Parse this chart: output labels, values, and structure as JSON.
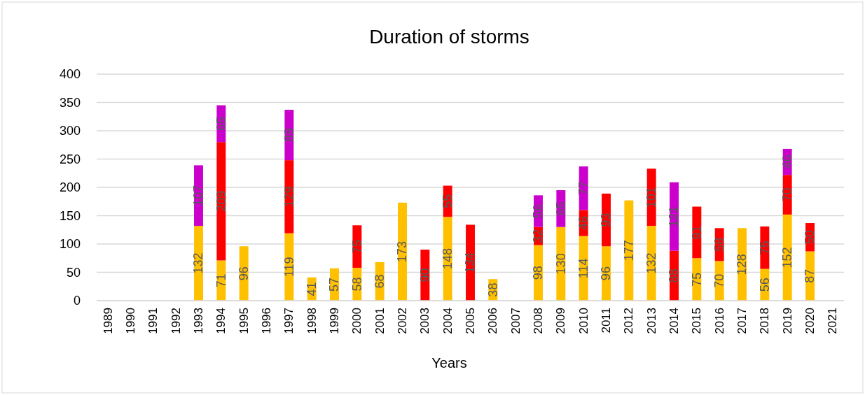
{
  "chart_data": {
    "type": "bar",
    "stacked": true,
    "title": "Duration of storms",
    "xlabel": "Years",
    "categories": [
      "1989",
      "1990",
      "1991",
      "1992",
      "1993",
      "1994",
      "1995",
      "1996",
      "1997",
      "1998",
      "1999",
      "2000",
      "2001",
      "2002",
      "2003",
      "2004",
      "2005",
      "2006",
      "2007",
      "2008",
      "2009",
      "2010",
      "2011",
      "2012",
      "2013",
      "2014",
      "2015",
      "2016",
      "2017",
      "2018",
      "2019",
      "2020",
      "2021"
    ],
    "series": [
      {
        "color": "#ffc000",
        "values": [
          null,
          null,
          null,
          null,
          132,
          71,
          96,
          null,
          119,
          41,
          57,
          58,
          68,
          173,
          null,
          148,
          null,
          38,
          null,
          98,
          130,
          114,
          96,
          177,
          132,
          null,
          75,
          70,
          128,
          56,
          152,
          87,
          null
        ]
      },
      {
        "color": "#ff0000",
        "values": [
          null,
          null,
          null,
          null,
          null,
          209,
          null,
          null,
          129,
          null,
          null,
          75,
          null,
          null,
          90,
          55,
          134,
          null,
          null,
          32,
          null,
          46,
          93,
          null,
          101,
          88,
          91,
          58,
          null,
          75,
          70,
          50,
          null
        ]
      },
      {
        "color": "#cc00cc",
        "values": [
          null,
          null,
          null,
          null,
          107,
          65,
          null,
          null,
          89,
          null,
          null,
          null,
          null,
          null,
          null,
          null,
          null,
          null,
          null,
          56,
          65,
          77,
          null,
          null,
          null,
          121,
          null,
          null,
          null,
          null,
          46,
          null,
          null
        ]
      }
    ],
    "ylim": [
      0,
      400
    ],
    "yticks": [
      0,
      50,
      100,
      150,
      200,
      250,
      300,
      350,
      400
    ],
    "grid": "y",
    "data_labels": true
  }
}
